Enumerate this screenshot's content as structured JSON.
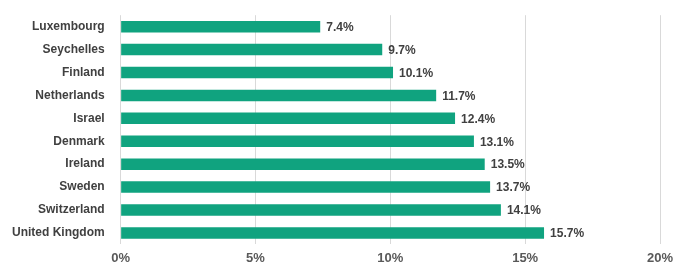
{
  "chart_data": {
    "type": "bar",
    "orientation": "horizontal",
    "categories": [
      "Luxembourg",
      "Seychelles",
      "Finland",
      "Netherlands",
      "Israel",
      "Denmark",
      "Ireland",
      "Sweden",
      "Switzerland",
      "United Kingdom"
    ],
    "values": [
      7.4,
      9.7,
      10.1,
      11.7,
      12.4,
      13.1,
      13.5,
      13.7,
      14.1,
      15.7
    ],
    "value_labels": [
      "7.4%",
      "9.7%",
      "10.1%",
      "11.7%",
      "12.4%",
      "13.1%",
      "13.5%",
      "13.7%",
      "14.1%",
      "15.7%"
    ],
    "color": "#10a37f",
    "xlim": [
      0,
      20
    ],
    "xticks": [
      {
        "value": 0,
        "label": "0%"
      },
      {
        "value": 5,
        "label": "5%"
      },
      {
        "value": 10,
        "label": "10%"
      },
      {
        "value": 15,
        "label": "15%"
      },
      {
        "value": 20,
        "label": "20%"
      }
    ],
    "grid": true,
    "data_labels": true
  }
}
